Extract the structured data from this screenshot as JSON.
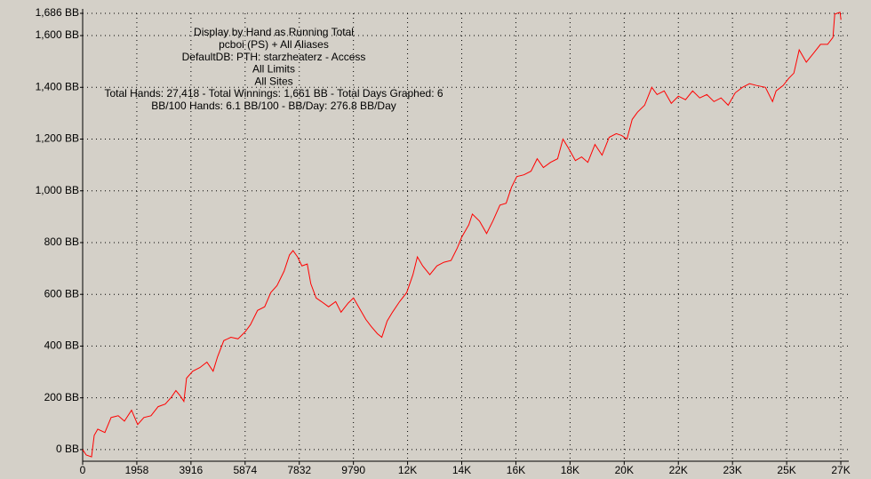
{
  "chart_data": {
    "type": "line",
    "annotations": [
      "Display by Hand as Running Total",
      "pcboi (PS) + All Aliases",
      "DefaultDB: PTH: starzheaterz - Access",
      "All Limits",
      "All Sites",
      "Total Hands: 27,418 - Total Winnings: 1,661 BB - Total Days Graphed: 6",
      "BB/100 Hands: 6.1 BB/100 - BB/Day: 276.8 BB/Day"
    ],
    "xlim": [
      0,
      27700
    ],
    "ylim": [
      -45,
      1686
    ],
    "xticks": [
      0,
      1958,
      3916,
      5874,
      7832,
      9790,
      {
        "value": 11748,
        "label": "12K"
      },
      {
        "value": 13706,
        "label": "14K"
      },
      {
        "value": 15664,
        "label": "16K"
      },
      {
        "value": 17622,
        "label": "18K"
      },
      {
        "value": 19580,
        "label": "20K"
      },
      {
        "value": 21538,
        "label": "22K"
      },
      {
        "value": 23496,
        "label": "23K"
      },
      {
        "value": 25454,
        "label": "25K"
      },
      {
        "value": 27412,
        "label": "27K"
      }
    ],
    "yticks": [
      {
        "value": 0,
        "label": "0 BB"
      },
      {
        "value": 200,
        "label": "200 BB"
      },
      {
        "value": 400,
        "label": "400 BB"
      },
      {
        "value": 600,
        "label": "600 BB"
      },
      {
        "value": 800,
        "label": "800 BB"
      },
      {
        "value": 1000,
        "label": "1,000 BB"
      },
      {
        "value": 1200,
        "label": "1,200 BB"
      },
      {
        "value": 1400,
        "label": "1,400 BB"
      },
      {
        "value": 1600,
        "label": "1,600 BB"
      },
      {
        "value": 1686,
        "label": "1,686 BB"
      }
    ],
    "grid": true,
    "series": [
      {
        "color": "#ff0000",
        "x": [
          0,
          128,
          321,
          417,
          546,
          803,
          1027,
          1284,
          1509,
          1766,
          1990,
          2215,
          2472,
          2729,
          2985,
          3210,
          3370,
          3531,
          3659,
          3755,
          3980,
          4237,
          4494,
          4718,
          4879,
          5104,
          5360,
          5617,
          5874,
          6066,
          6323,
          6580,
          6804,
          7029,
          7286,
          7479,
          7607,
          7768,
          7928,
          8121,
          8249,
          8442,
          8634,
          8891,
          9148,
          9340,
          9597,
          9790,
          10014,
          10239,
          10432,
          10657,
          10817,
          11010,
          11202,
          11459,
          11716,
          11940,
          12101,
          12294,
          12551,
          12808,
          13064,
          13321,
          13546,
          13706,
          13963,
          14091,
          14348,
          14605,
          14830,
          15087,
          15311,
          15504,
          15697,
          15954,
          16211,
          16435,
          16660,
          16917,
          17174,
          17366,
          17559,
          17816,
          18040,
          18265,
          18522,
          18779,
          19036,
          19292,
          19485,
          19678,
          19870,
          20063,
          20320,
          20577,
          20769,
          21026,
          21283,
          21540,
          21797,
          22054,
          22310,
          22567,
          22824,
          23081,
          23338,
          23595,
          23852,
          24109,
          24366,
          24687,
          24944,
          25072,
          25329,
          25522,
          25714,
          25907,
          26164,
          26421,
          26678,
          26935,
          27127,
          27192,
          27384,
          27418
        ],
        "values": [
          0,
          -21,
          -28,
          55,
          79,
          66,
          124,
          131,
          110,
          152,
          97,
          124,
          131,
          166,
          176,
          203,
          228,
          207,
          186,
          276,
          303,
          317,
          338,
          303,
          359,
          421,
          434,
          428,
          455,
          483,
          538,
          552,
          607,
          634,
          690,
          752,
          769,
          745,
          710,
          717,
          641,
          586,
          572,
          552,
          572,
          531,
          566,
          586,
          545,
          503,
          476,
          448,
          434,
          497,
          531,
          572,
          607,
          676,
          745,
          710,
          676,
          710,
          724,
          731,
          779,
          821,
          869,
          910,
          883,
          835,
          883,
          945,
          952,
          1014,
          1055,
          1062,
          1076,
          1124,
          1090,
          1110,
          1124,
          1200,
          1166,
          1117,
          1131,
          1110,
          1179,
          1138,
          1207,
          1221,
          1214,
          1200,
          1276,
          1304,
          1331,
          1400,
          1372,
          1386,
          1338,
          1366,
          1352,
          1386,
          1359,
          1372,
          1345,
          1359,
          1331,
          1379,
          1400,
          1414,
          1407,
          1400,
          1345,
          1386,
          1407,
          1434,
          1455,
          1545,
          1497,
          1531,
          1566,
          1566,
          1593,
          1683,
          1690,
          1661
        ]
      }
    ]
  }
}
